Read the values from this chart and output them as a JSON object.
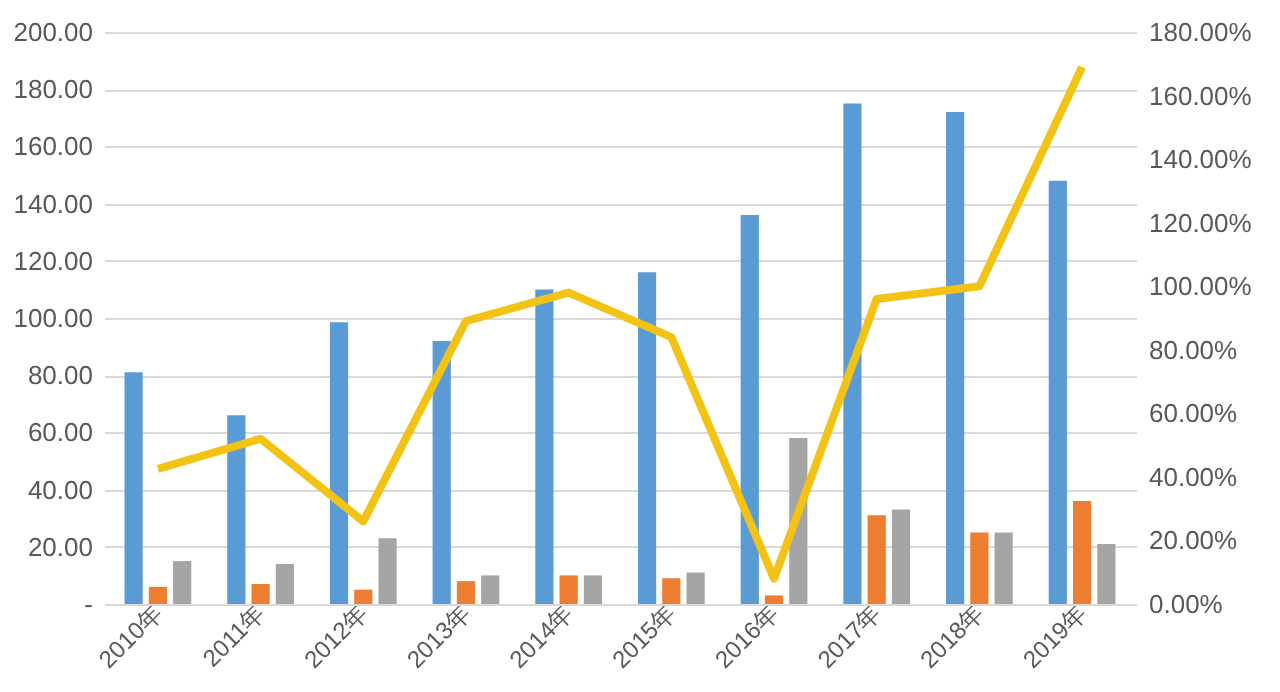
{
  "chart_data": {
    "type": "bar",
    "categories": [
      "2010年",
      "2011年",
      "2012年",
      "2013年",
      "2014年",
      "2015年",
      "2016年",
      "2017年",
      "2018年",
      "2019年"
    ],
    "series": [
      {
        "color": "#5b9bd5",
        "values": [
          81,
          66,
          98.5,
          92,
          110,
          116,
          136,
          175,
          172,
          148
        ]
      },
      {
        "color": "#ed7d31",
        "values": [
          6,
          7,
          5,
          8,
          10,
          9,
          3,
          31,
          25,
          36
        ]
      },
      {
        "color": "#a5a5a5",
        "values": [
          15,
          14,
          23,
          10,
          10,
          11,
          58,
          33,
          25,
          21
        ]
      },
      {
        "type": "line",
        "axis": "y2",
        "color": "#f2c314",
        "values": [
          42.5,
          52,
          26,
          89,
          98,
          84,
          8,
          96,
          100,
          169
        ]
      }
    ],
    "ylim": [
      0,
      200
    ],
    "yticks": [
      {
        "value": 0,
        "label": "-"
      },
      {
        "value": 20,
        "label": "20.00"
      },
      {
        "value": 40,
        "label": "40.00"
      },
      {
        "value": 60,
        "label": "60.00"
      },
      {
        "value": 80,
        "label": "80.00"
      },
      {
        "value": 100,
        "label": "100.00"
      },
      {
        "value": 120,
        "label": "120.00"
      },
      {
        "value": 140,
        "label": "140.00"
      },
      {
        "value": 160,
        "label": "160.00"
      },
      {
        "value": 180,
        "label": "180.00"
      },
      {
        "value": 200,
        "label": "200.00"
      }
    ],
    "y2lim": [
      0,
      180
    ],
    "y2ticks": [
      {
        "value": 0,
        "label": "0.00%"
      },
      {
        "value": 20,
        "label": "20.00%"
      },
      {
        "value": 40,
        "label": "40.00%"
      },
      {
        "value": 60,
        "label": "60.00%"
      },
      {
        "value": 80,
        "label": "80.00%"
      },
      {
        "value": 100,
        "label": "100.00%"
      },
      {
        "value": 120,
        "label": "120.00%"
      },
      {
        "value": 140,
        "label": "140.00%"
      },
      {
        "value": 160,
        "label": "160.00%"
      },
      {
        "value": 180,
        "label": "180.00%"
      }
    ],
    "grid": "y",
    "legend": false
  }
}
